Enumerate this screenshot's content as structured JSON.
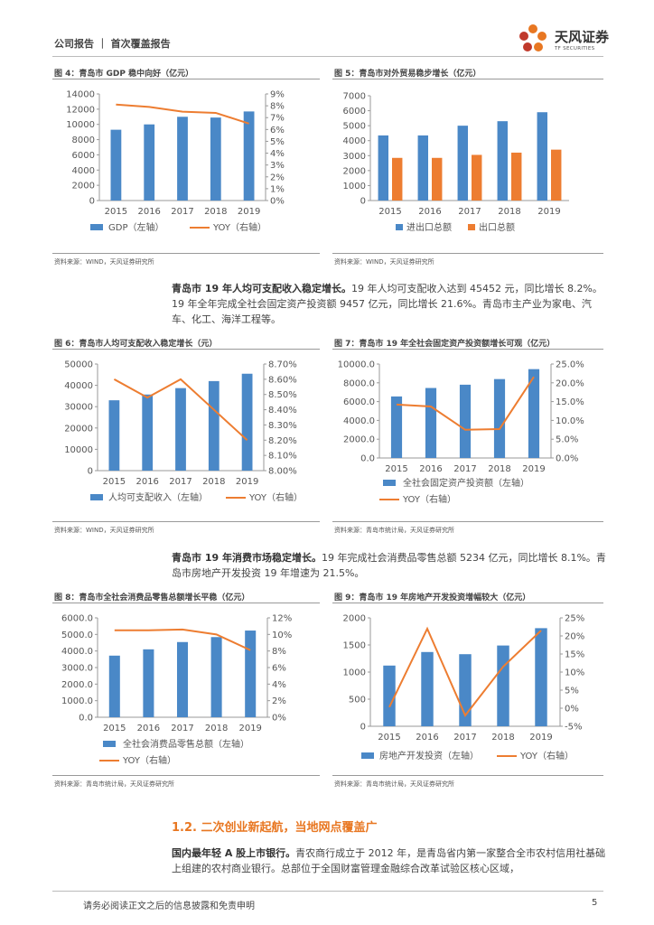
{
  "header": {
    "left": "公司报告 ｜ 首次覆盖报告",
    "logo_cn": "天风证券",
    "logo_en": "TF SECURITIES"
  },
  "colors": {
    "bar": "#4a88c7",
    "line": "#ed7d31",
    "orange": "#e87722"
  },
  "figures": [
    {
      "title": "图 4：青岛市 GDP 稳中向好（亿元）",
      "source": "资料来源：WIND，天风证券研究所"
    },
    {
      "title": "图 5：青岛市对外贸易稳步增长（亿元）",
      "source": "资料来源：WIND，天风证券研究所"
    },
    {
      "title": "图 6：青岛市人均可支配收入稳定增长（元）",
      "source": "资料来源：WIND，天风证券研究所"
    },
    {
      "title": "图 7：青岛市 19 年全社会固定资产投资额增长可观（亿元）",
      "source": "资料来源：青岛市统计局，天风证券研究所"
    },
    {
      "title": "图 8：青岛市全社会消费品零售总额增长平稳（亿元）",
      "source": "资料来源：青岛市统计局，天风证券研究所"
    },
    {
      "title": "图 9：青岛市 19 年房地产开发投资增幅较大（亿元）",
      "source": "资料来源：青岛市统计局，天风证券研究所"
    }
  ],
  "chart_data": [
    {
      "type": "bar",
      "categories": [
        "2015",
        "2016",
        "2017",
        "2018",
        "2019"
      ],
      "series": [
        {
          "name": "GDP（左轴）",
          "values": [
            9300,
            10000,
            11000,
            10900,
            11700
          ],
          "kind": "bar"
        },
        {
          "name": "YOY（右轴）",
          "values": [
            8.1,
            7.9,
            7.5,
            7.4,
            6.5
          ],
          "kind": "line"
        }
      ],
      "yleft": [
        0,
        14000,
        2000
      ],
      "yright": [
        0,
        9,
        1
      ],
      "yleft_ticks": [
        "0",
        "2000",
        "4000",
        "6000",
        "8000",
        "10000",
        "12000",
        "14000"
      ],
      "yright_ticks": [
        "0%",
        "1%",
        "2%",
        "3%",
        "4%",
        "5%",
        "6%",
        "7%",
        "8%",
        "9%"
      ]
    },
    {
      "type": "bar",
      "categories": [
        "2015",
        "2016",
        "2017",
        "2018",
        "2019"
      ],
      "series": [
        {
          "name": "进出口总额",
          "values": [
            4350,
            4350,
            5000,
            5300,
            5900
          ],
          "kind": "bar"
        },
        {
          "name": "出口总额",
          "values": [
            2850,
            2850,
            3050,
            3200,
            3400
          ],
          "kind": "bar2"
        }
      ],
      "yleft": [
        0,
        7000,
        1000
      ],
      "yleft_ticks": [
        "0",
        "1000",
        "2000",
        "3000",
        "4000",
        "5000",
        "6000",
        "7000"
      ]
    },
    {
      "type": "bar",
      "categories": [
        "2015",
        "2016",
        "2017",
        "2018",
        "2019"
      ],
      "series": [
        {
          "name": "人均可支配收入（左轴）",
          "values": [
            33000,
            35700,
            38700,
            42000,
            45452
          ],
          "kind": "bar"
        },
        {
          "name": "YOY（右轴）",
          "values": [
            8.6,
            8.48,
            8.6,
            8.4,
            8.2
          ],
          "kind": "line"
        }
      ],
      "yleft": [
        0,
        50000,
        10000
      ],
      "yright": [
        8.0,
        8.7,
        0.1
      ],
      "yleft_ticks": [
        "0",
        "10000",
        "20000",
        "30000",
        "40000",
        "50000"
      ],
      "yright_ticks": [
        "8.00%",
        "8.10%",
        "8.20%",
        "8.30%",
        "8.40%",
        "8.50%",
        "8.60%",
        "8.70%"
      ]
    },
    {
      "type": "bar",
      "categories": [
        "2015",
        "2016",
        "2017",
        "2018",
        "2019"
      ],
      "series": [
        {
          "name": "全社会固定资产投资额（左轴）",
          "values": [
            6550,
            7450,
            7800,
            8400,
            9457
          ],
          "kind": "bar"
        },
        {
          "name": "YOY（右轴）",
          "values": [
            14.2,
            13.7,
            7.5,
            7.7,
            21.6
          ],
          "kind": "line"
        }
      ],
      "yleft": [
        0,
        10000,
        2000
      ],
      "yright": [
        0,
        25,
        5
      ],
      "yleft_ticks": [
        "0.0",
        "2000.0",
        "4000.0",
        "6000.0",
        "8000.0",
        "10000.0"
      ],
      "yright_ticks": [
        "0.0%",
        "5.0%",
        "10.0%",
        "15.0%",
        "20.0%",
        "25.0%"
      ]
    },
    {
      "type": "bar",
      "categories": [
        "2015",
        "2016",
        "2017",
        "2018",
        "2019"
      ],
      "series": [
        {
          "name": "全社会消费品零售总额（左轴）",
          "values": [
            3720,
            4100,
            4540,
            4840,
            5234
          ],
          "kind": "bar"
        },
        {
          "name": "YOY（右轴）",
          "values": [
            10.5,
            10.5,
            10.6,
            10.0,
            8.1
          ],
          "kind": "line"
        }
      ],
      "yleft": [
        0,
        6000,
        1000
      ],
      "yright": [
        0,
        12,
        2
      ],
      "yleft_ticks": [
        "0.0",
        "1000.0",
        "2000.0",
        "3000.0",
        "4000.0",
        "5000.0",
        "6000.0"
      ],
      "yright_ticks": [
        "0%",
        "2%",
        "4%",
        "6%",
        "8%",
        "10%",
        "12%"
      ]
    },
    {
      "type": "bar",
      "categories": [
        "2015",
        "2016",
        "2017",
        "2018",
        "2019"
      ],
      "series": [
        {
          "name": "房地产开发投资（左轴）",
          "values": [
            1120,
            1370,
            1330,
            1490,
            1810
          ],
          "kind": "bar"
        },
        {
          "name": "YOY（右轴）",
          "values": [
            0.3,
            22.0,
            -2.0,
            11.5,
            21.5
          ],
          "kind": "line"
        }
      ],
      "yleft": [
        0,
        2000,
        500
      ],
      "yright": [
        -5,
        25,
        5
      ],
      "yleft_ticks": [
        "0",
        "500",
        "1000",
        "1500",
        "2000"
      ],
      "yright_ticks": [
        "-5%",
        "0%",
        "5%",
        "10%",
        "15%",
        "20%",
        "25%"
      ]
    }
  ],
  "para1": {
    "bold": "青岛市 19 年人均可支配收入稳定增长。",
    "text": "19 年人均可支配收入达到 45452 元，同比增长 8.2%。19 年全年完成全社会固定资产投资额 9457 亿元，同比增长 21.6%。青岛市主产业为家电、汽车、化工、海洋工程等。"
  },
  "para2": {
    "bold": "青岛市 19 年消费市场稳定增长。",
    "text": "19 年完成社会消费品零售总额 5234 亿元，同比增长 8.1%。青岛市房地产开发投资 19 年增速为 21.5%。"
  },
  "section": "1.2. 二次创业新起航，当地网点覆盖广",
  "para3": {
    "bold": "国内最年轻 A 股上市银行。",
    "text": "青农商行成立于 2012 年，是青岛省内第一家整合全市农村信用社基础上组建的农村商业银行。总部位于全国财富管理金融综合改革试验区核心区域，"
  },
  "footer": "请务必阅读正文之后的信息披露和免责申明",
  "page_number": "5"
}
